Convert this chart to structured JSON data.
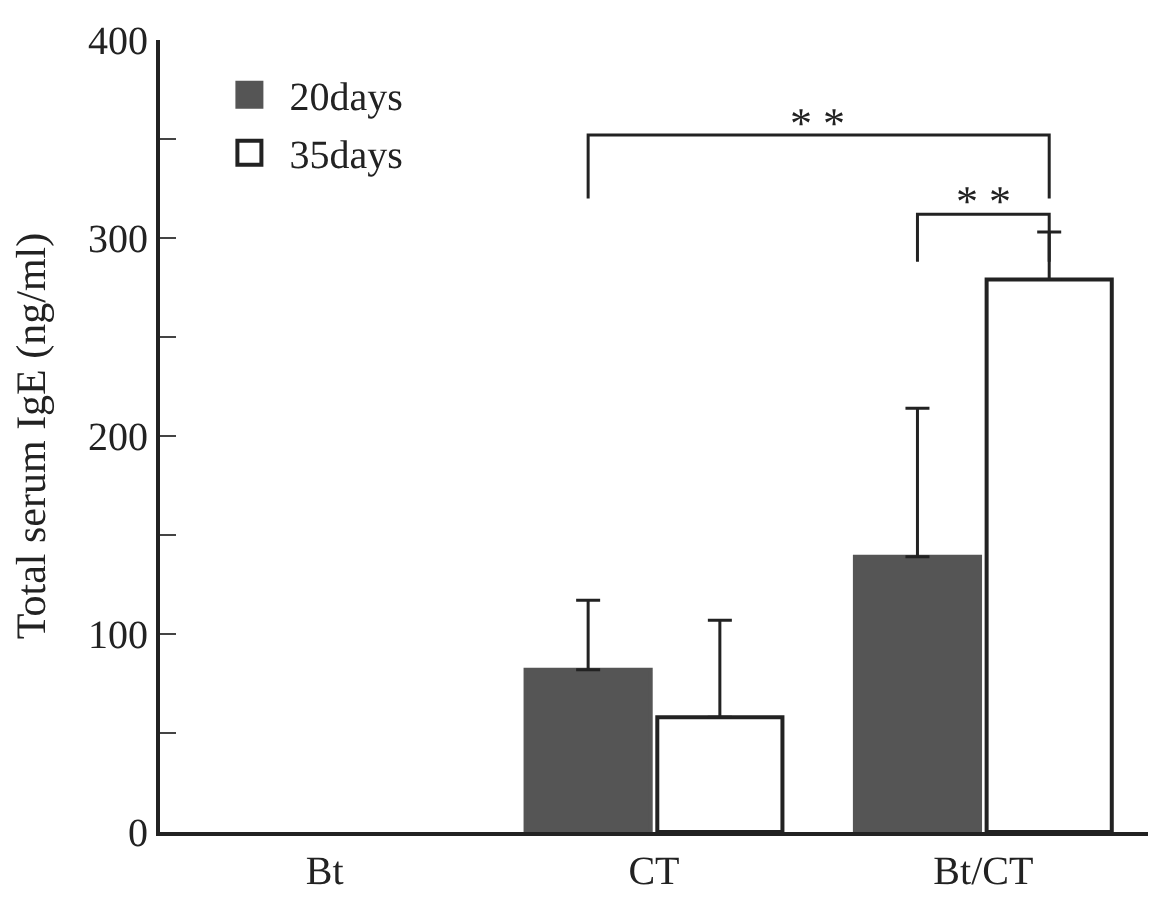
{
  "chart_data": {
    "type": "bar",
    "ylabel": "Total serum IgE (ng/ml)",
    "categories": [
      "Bt",
      "CT",
      "Bt/CT"
    ],
    "series": [
      {
        "name": "20days",
        "color": "#555555",
        "values": [
          null,
          82,
          139
        ],
        "errors": [
          null,
          [
            82,
            117
          ],
          [
            139,
            214
          ]
        ]
      },
      {
        "name": "35days",
        "color": "#ffffff",
        "values": [
          null,
          58,
          279
        ],
        "errors": [
          null,
          [
            58,
            107
          ],
          [
            279,
            303
          ]
        ]
      }
    ],
    "ylim": [
      0,
      400
    ],
    "yticks": [
      0,
      {
        "value": 50,
        "label": null
      },
      100,
      {
        "value": 150,
        "label": null
      },
      200,
      {
        "value": 250,
        "label": null
      },
      300,
      {
        "value": 350,
        "label": null
      },
      400
    ],
    "annotations": [
      "* *",
      "* *"
    ],
    "legend": "top left"
  }
}
